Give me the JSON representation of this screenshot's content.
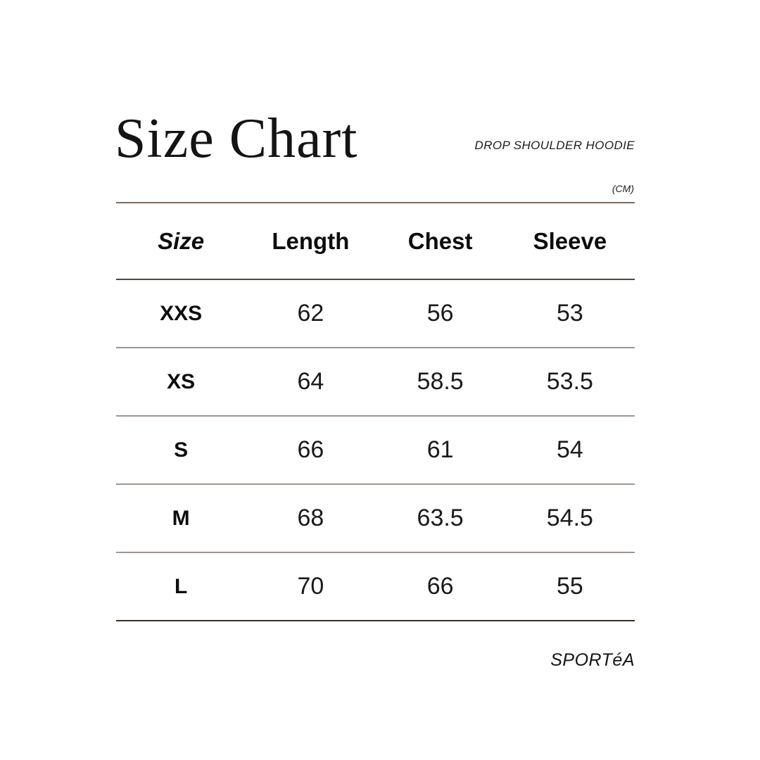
{
  "header": {
    "title": "Size Chart",
    "subtitle": "DROP SHOULDER HOODIE",
    "unit_label": "(CM)"
  },
  "footer": {
    "brand": "SPORTéA"
  },
  "chart_data": {
    "type": "table",
    "title": "Size Chart",
    "subtitle": "DROP SHOULDER HOODIE",
    "unit": "CM",
    "columns": [
      "Size",
      "Length",
      "Chest",
      "Sleeve"
    ],
    "rows": [
      {
        "size": "XXS",
        "length": 62,
        "chest": 56,
        "sleeve": 53
      },
      {
        "size": "XS",
        "length": 64,
        "chest": 58.5,
        "sleeve": 53.5
      },
      {
        "size": "S",
        "length": 66,
        "chest": 61,
        "sleeve": 54
      },
      {
        "size": "M",
        "length": 68,
        "chest": 63.5,
        "sleeve": 54.5
      },
      {
        "size": "L",
        "length": 70,
        "chest": 66,
        "sleeve": 55
      }
    ]
  },
  "colors": {
    "line-top": "#796b61",
    "line-header": "#564738",
    "line-divider": "#9d9590",
    "line-bottom": "#3c2c22",
    "text": "#111111",
    "background": "#ffffff"
  }
}
